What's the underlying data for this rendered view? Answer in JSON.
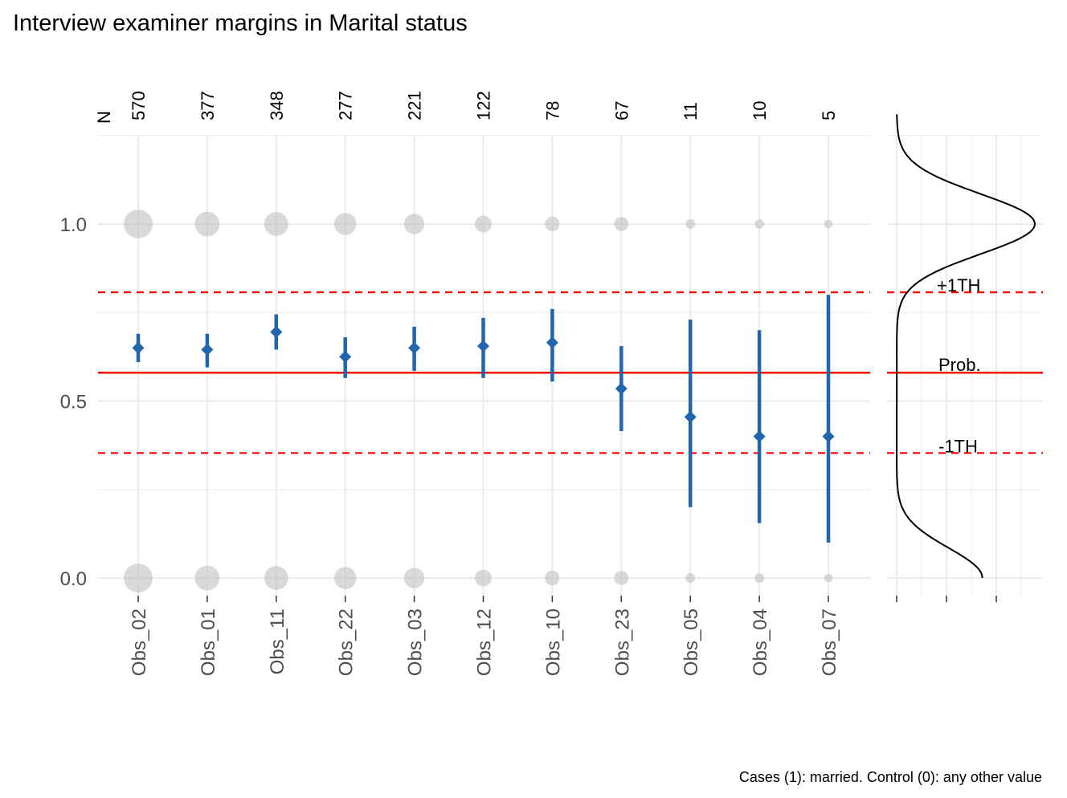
{
  "chart_data": {
    "type": "scatter",
    "title": "Interview examiner margins in Marital status",
    "caption": "Cases (1): married. Control (0): any other value",
    "n_label": "N",
    "categories": [
      "Obs_02",
      "Obs_01",
      "Obs_11",
      "Obs_22",
      "Obs_03",
      "Obs_12",
      "Obs_10",
      "Obs_23",
      "Obs_05",
      "Obs_04",
      "Obs_07"
    ],
    "n": [
      570,
      377,
      348,
      277,
      221,
      122,
      78,
      67,
      11,
      10,
      5
    ],
    "estimate": [
      0.65,
      0.645,
      0.695,
      0.625,
      0.65,
      0.655,
      0.665,
      0.535,
      0.455,
      0.4,
      0.4
    ],
    "lower": [
      0.61,
      0.595,
      0.645,
      0.565,
      0.585,
      0.565,
      0.555,
      0.415,
      0.2,
      0.155,
      0.1
    ],
    "upper": [
      0.69,
      0.69,
      0.745,
      0.68,
      0.71,
      0.735,
      0.76,
      0.655,
      0.73,
      0.7,
      0.8
    ],
    "reference": {
      "prob": 0.58,
      "plus_1th": 0.807,
      "minus_1th": 0.353,
      "labels": {
        "prob": "Prob.",
        "plus": "+1TH",
        "minus": "-1TH"
      }
    },
    "yticks": [
      "0.0",
      "0.5",
      "1.0"
    ],
    "ylim": [
      -0.08,
      1.31
    ],
    "colors": {
      "estimate": "#2166ac",
      "reference": "#ff0000",
      "count_points": "#bfbfbf",
      "grid": "#ebebeb",
      "density": "#000000"
    }
  }
}
